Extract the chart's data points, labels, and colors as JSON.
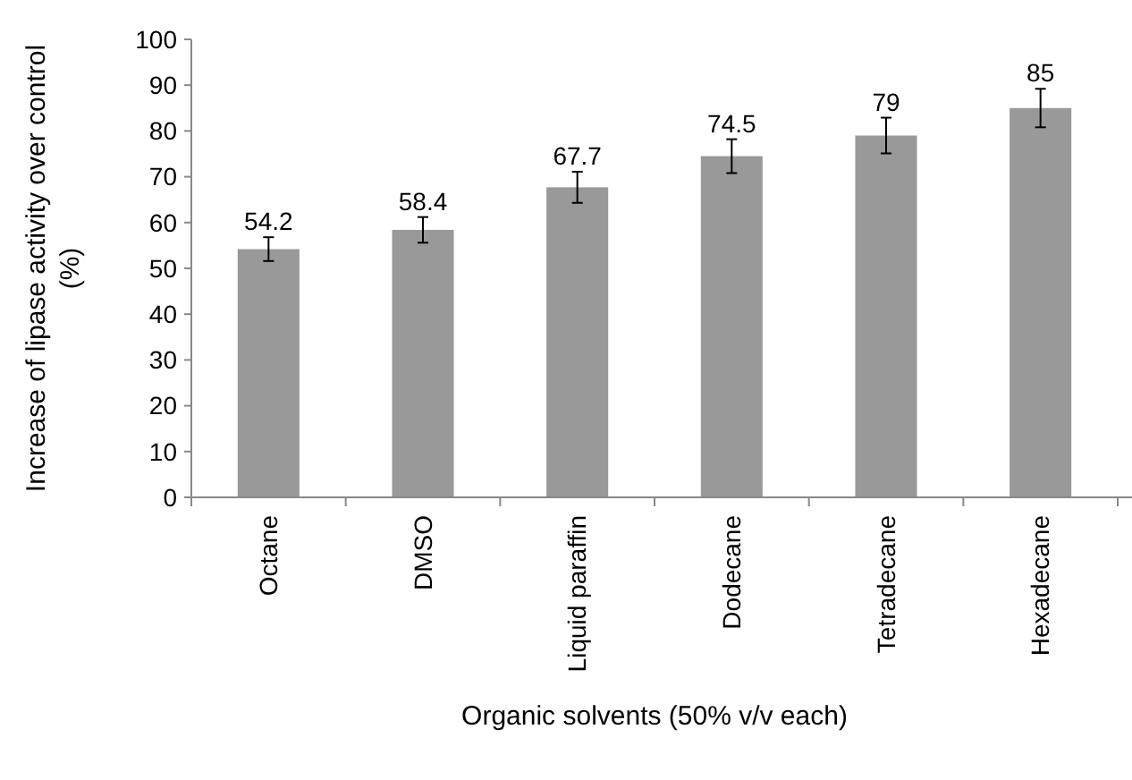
{
  "chart_data": {
    "type": "bar",
    "xlabel": "Organic solvents (50% v/v each)",
    "ylabel": "Increase of lipase activity over control (%)",
    "categories": [
      "Octane",
      "DMSO",
      "Liquid paraffin",
      "Dodecane",
      "Tetradecane",
      "Hexadecane"
    ],
    "values": [
      54.2,
      58.4,
      67.7,
      74.5,
      79,
      85
    ],
    "errors": [
      2.6,
      2.8,
      3.4,
      3.7,
      3.9,
      4.2
    ],
    "color": "#999999",
    "ylim": [
      0,
      100
    ],
    "yticks": [
      0,
      10,
      20,
      30,
      40,
      50,
      60,
      70,
      80,
      90,
      100
    ],
    "data_labels": true,
    "grid": false
  }
}
